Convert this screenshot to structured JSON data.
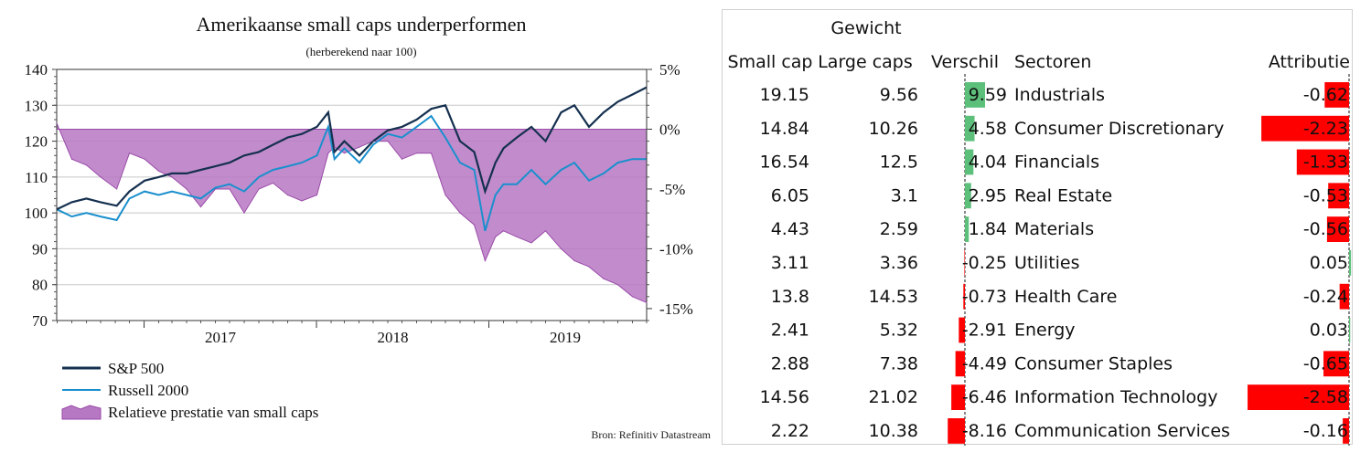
{
  "chart_data": [
    {
      "type": "line",
      "title": "Amerikaanse small caps underperformen",
      "subtitle": "(herberekend naar 100)",
      "source": "Bron: Refinitiv Datastream",
      "x_ticks": [
        "2017",
        "2018",
        "2019"
      ],
      "y_left": {
        "ticks": [
          "140",
          "130",
          "120",
          "110",
          "100",
          "90",
          "80",
          "70"
        ],
        "range": [
          70,
          140
        ]
      },
      "y_right": {
        "ticks": [
          "5%",
          "0%",
          "-5%",
          "-10%",
          "-15%"
        ],
        "range": [
          -16,
          5
        ]
      },
      "series": [
        {
          "name": "S&P 500",
          "type": "line",
          "color": "#15304f",
          "x": [
            "2016-06-30",
            "2016-08-01",
            "2016-09-01",
            "2016-10-01",
            "2016-11-04",
            "2016-12-01",
            "2017-01-02",
            "2017-02-01",
            "2017-03-01",
            "2017-04-01",
            "2017-05-01",
            "2017-06-01",
            "2017-07-01",
            "2017-08-01",
            "2017-09-01",
            "2017-10-01",
            "2017-11-01",
            "2017-12-01",
            "2018-01-02",
            "2018-01-26",
            "2018-02-08",
            "2018-03-01",
            "2018-04-02",
            "2018-05-01",
            "2018-06-01",
            "2018-07-01",
            "2018-08-01",
            "2018-09-01",
            "2018-10-01",
            "2018-11-01",
            "2018-12-01",
            "2018-12-24",
            "2019-01-15",
            "2019-02-01",
            "2019-03-01",
            "2019-04-01",
            "2019-05-01",
            "2019-06-03",
            "2019-07-01",
            "2019-08-01",
            "2019-09-01",
            "2019-10-01",
            "2019-11-01",
            "2019-12-01"
          ],
          "y": [
            101,
            103,
            104,
            103,
            102,
            106,
            109,
            110,
            111,
            111,
            112,
            113,
            114,
            116,
            117,
            119,
            121,
            122,
            124,
            128,
            117,
            120,
            116,
            120,
            123,
            124,
            126,
            129,
            130,
            120,
            117,
            106,
            114,
            118,
            121,
            124,
            120,
            128,
            130,
            124,
            128,
            131,
            133,
            135
          ]
        },
        {
          "name": "Russell 2000",
          "type": "line",
          "color": "#1a8fcd",
          "x": [
            "2016-06-30",
            "2016-08-01",
            "2016-09-01",
            "2016-10-01",
            "2016-11-04",
            "2016-12-01",
            "2017-01-02",
            "2017-02-01",
            "2017-03-01",
            "2017-04-01",
            "2017-05-01",
            "2017-06-01",
            "2017-07-01",
            "2017-08-01",
            "2017-09-01",
            "2017-10-01",
            "2017-11-01",
            "2017-12-01",
            "2018-01-02",
            "2018-01-26",
            "2018-02-08",
            "2018-03-01",
            "2018-04-02",
            "2018-05-01",
            "2018-06-01",
            "2018-07-01",
            "2018-08-01",
            "2018-09-01",
            "2018-10-01",
            "2018-11-01",
            "2018-12-01",
            "2018-12-24",
            "2019-01-15",
            "2019-02-01",
            "2019-03-01",
            "2019-04-01",
            "2019-05-01",
            "2019-06-03",
            "2019-07-01",
            "2019-08-01",
            "2019-09-01",
            "2019-10-01",
            "2019-11-01",
            "2019-12-01"
          ],
          "y": [
            101,
            99,
            100,
            99,
            98,
            104,
            106,
            105,
            106,
            105,
            104,
            107,
            108,
            106,
            110,
            112,
            113,
            114,
            116,
            124,
            115,
            118,
            114,
            119,
            122,
            121,
            124,
            127,
            121,
            114,
            112,
            95,
            105,
            108,
            108,
            112,
            108,
            112,
            114,
            109,
            111,
            114,
            115,
            115
          ]
        },
        {
          "name": "Relatieve prestatie van small caps",
          "type": "area",
          "color": "#b778c3",
          "axis": "right",
          "x": [
            "2016-06-30",
            "2016-08-01",
            "2016-09-01",
            "2016-10-01",
            "2016-11-04",
            "2016-12-01",
            "2017-01-02",
            "2017-02-01",
            "2017-03-01",
            "2017-04-01",
            "2017-05-01",
            "2017-06-01",
            "2017-07-01",
            "2017-08-01",
            "2017-09-01",
            "2017-10-01",
            "2017-11-01",
            "2017-12-01",
            "2018-01-02",
            "2018-01-26",
            "2018-02-08",
            "2018-03-01",
            "2018-04-02",
            "2018-05-01",
            "2018-06-01",
            "2018-07-01",
            "2018-08-01",
            "2018-09-01",
            "2018-10-01",
            "2018-11-01",
            "2018-12-01",
            "2018-12-24",
            "2019-01-15",
            "2019-02-01",
            "2019-03-01",
            "2019-04-01",
            "2019-05-01",
            "2019-06-03",
            "2019-07-01",
            "2019-08-01",
            "2019-09-01",
            "2019-10-01",
            "2019-11-01",
            "2019-12-01"
          ],
          "y": [
            0.5,
            -2.5,
            -3,
            -4,
            -5,
            -2,
            -2.5,
            -3.5,
            -4,
            -5,
            -6.5,
            -5,
            -5,
            -7,
            -5,
            -4.5,
            -5.5,
            -6,
            -5.5,
            -2,
            -1.5,
            -2,
            -1.5,
            -1,
            -1,
            -2.5,
            -2,
            -2,
            -5.5,
            -7,
            -8,
            -11,
            -9,
            -8.5,
            -9,
            -9.5,
            -8.5,
            -10,
            -11,
            -11.5,
            -12.5,
            -13,
            -14,
            -14.5
          ]
        }
      ]
    },
    {
      "type": "table",
      "header_group": "Gewicht",
      "columns": [
        "Small cap",
        "Large caps",
        "Verschil",
        "Sectoren",
        "Attributie"
      ],
      "rows": [
        {
          "small_cap": "19.15",
          "large_caps": "9.56",
          "verschil": "9.59",
          "sector": "Industrials",
          "attributie": "-0.62",
          "verschil_value": 9.59,
          "attributie_value": -0.62
        },
        {
          "small_cap": "14.84",
          "large_caps": "10.26",
          "verschil": "4.58",
          "sector": "Consumer Discretionary",
          "attributie": "-2.23",
          "verschil_value": 4.58,
          "attributie_value": -2.23
        },
        {
          "small_cap": "16.54",
          "large_caps": "12.5",
          "verschil": "4.04",
          "sector": "Financials",
          "attributie": "-1.33",
          "verschil_value": 4.04,
          "attributie_value": -1.33
        },
        {
          "small_cap": "6.05",
          "large_caps": "3.1",
          "verschil": "2.95",
          "sector": "Real Estate",
          "attributie": "-0.53",
          "verschil_value": 2.95,
          "attributie_value": -0.53
        },
        {
          "small_cap": "4.43",
          "large_caps": "2.59",
          "verschil": "1.84",
          "sector": "Materials",
          "attributie": "-0.56",
          "verschil_value": 1.84,
          "attributie_value": -0.56
        },
        {
          "small_cap": "3.11",
          "large_caps": "3.36",
          "verschil": "-0.25",
          "sector": "Utilities",
          "attributie": "0.05",
          "verschil_value": -0.25,
          "attributie_value": 0.05
        },
        {
          "small_cap": "13.8",
          "large_caps": "14.53",
          "verschil": "-0.73",
          "sector": "Health Care",
          "attributie": "-0.24",
          "verschil_value": -0.73,
          "attributie_value": -0.24
        },
        {
          "small_cap": "2.41",
          "large_caps": "5.32",
          "verschil": "-2.91",
          "sector": "Energy",
          "attributie": "0.03",
          "verschil_value": -2.91,
          "attributie_value": 0.03
        },
        {
          "small_cap": "2.88",
          "large_caps": "7.38",
          "verschil": "-4.49",
          "sector": "Consumer Staples",
          "attributie": "-0.65",
          "verschil_value": -4.49,
          "attributie_value": -0.65
        },
        {
          "small_cap": "14.56",
          "large_caps": "21.02",
          "verschil": "-6.46",
          "sector": "Information Technology",
          "attributie": "-2.58",
          "verschil_value": -6.46,
          "attributie_value": -2.58
        },
        {
          "small_cap": "2.22",
          "large_caps": "10.38",
          "verschil": "-8.16",
          "sector": "Communication Services",
          "attributie": "-0.16",
          "verschil_value": -8.16,
          "attributie_value": -0.16
        }
      ],
      "colors": {
        "positive_bar": "#5cbf7a",
        "negative_bar": "#ff0000"
      }
    }
  ]
}
